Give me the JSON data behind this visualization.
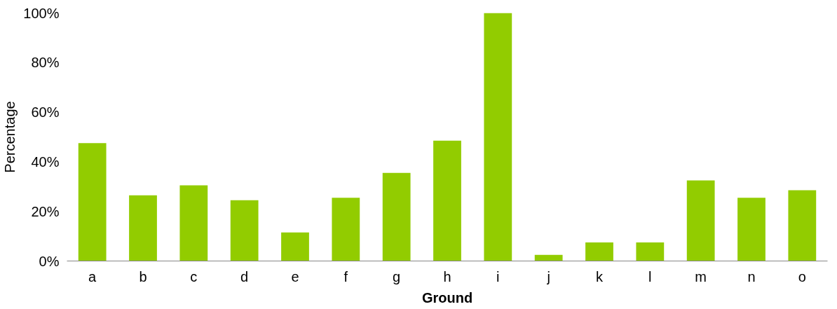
{
  "chart_data": {
    "type": "bar",
    "xlabel": "Ground",
    "ylabel": "Percentage",
    "categories": [
      "a",
      "b",
      "c",
      "d",
      "e",
      "f",
      "g",
      "h",
      "i",
      "j",
      "k",
      "l",
      "m",
      "n",
      "o"
    ],
    "values": [
      47.5,
      26.5,
      30.5,
      24.5,
      11.5,
      25.5,
      35.5,
      48.5,
      100,
      2.5,
      7.5,
      7.5,
      32.5,
      25.5,
      28.5
    ],
    "color": "#92cc00",
    "ylim": [
      0,
      100
    ],
    "yticks": [
      {
        "value": 0,
        "label": "0%"
      },
      {
        "value": 20,
        "label": "20%"
      },
      {
        "value": 40,
        "label": "40%"
      },
      {
        "value": 60,
        "label": "60%"
      },
      {
        "value": 80,
        "label": "80%"
      },
      {
        "value": 100,
        "label": "100%"
      }
    ],
    "grid": false
  }
}
